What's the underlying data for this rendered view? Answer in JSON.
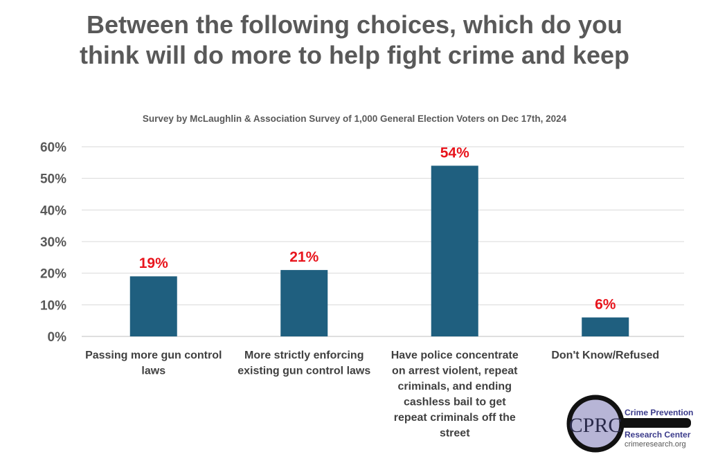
{
  "chart_data": {
    "type": "bar",
    "title": "Between the following choices, which do you think will do more to help fight crime and keep",
    "subtitle": "Survey by McLaughlin & Association Survey of 1,000 General Election Voters on Dec 17th, 2024",
    "categories": [
      [
        "Passing more gun control",
        "laws"
      ],
      [
        "More strictly enforcing",
        "existing gun control laws"
      ],
      [
        "Have police concentrate",
        "on arrest violent, repeat",
        "criminals, and ending",
        "cashless bail to get",
        "repeat criminals off the",
        "street"
      ],
      [
        "Don't Know/Refused"
      ]
    ],
    "values": [
      19,
      21,
      54,
      6
    ],
    "data_labels": [
      "19%",
      "21%",
      "54%",
      "6%"
    ],
    "xlabel": "",
    "ylabel": "",
    "ylim": [
      0,
      60
    ],
    "yticks": [
      "0%",
      "10%",
      "20%",
      "30%",
      "40%",
      "50%",
      "60%"
    ],
    "grid": true,
    "bar_color": "#1f5f7f",
    "label_color": "#e8141c"
  },
  "logo": {
    "mark": "CPRC",
    "line1": "Crime Prevention",
    "line2": "Research Center",
    "url": "crimeresearch.org"
  }
}
